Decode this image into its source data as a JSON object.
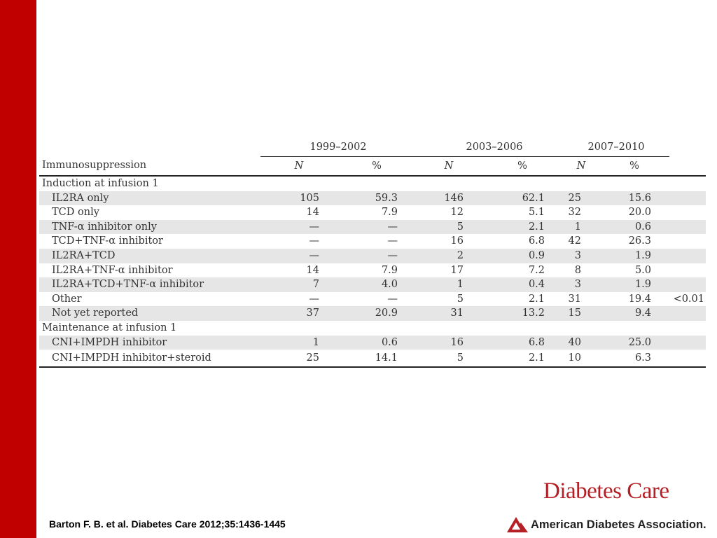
{
  "table": {
    "periods": [
      "1999–2002",
      "2003–2006",
      "2007–2010"
    ],
    "header": {
      "label": "Immunosuppression",
      "n": "N",
      "pct": "%"
    },
    "sections": [
      {
        "title": "Induction at infusion 1",
        "rows": [
          {
            "label": "IL2RA only",
            "v": [
              "105",
              "59.3",
              "146",
              "62.1",
              "25",
              "15.6"
            ],
            "p": ""
          },
          {
            "label": "TCD only",
            "v": [
              "14",
              "7.9",
              "12",
              "5.1",
              "32",
              "20.0"
            ],
            "p": ""
          },
          {
            "label": "TNF-α inhibitor only",
            "v": [
              "—",
              "—",
              "5",
              "2.1",
              "1",
              "0.6"
            ],
            "p": ""
          },
          {
            "label": "TCD+TNF-α inhibitor",
            "v": [
              "—",
              "—",
              "16",
              "6.8",
              "42",
              "26.3"
            ],
            "p": ""
          },
          {
            "label": "IL2RA+TCD",
            "v": [
              "—",
              "—",
              "2",
              "0.9",
              "3",
              "1.9"
            ],
            "p": ""
          },
          {
            "label": "IL2RA+TNF-α inhibitor",
            "v": [
              "14",
              "7.9",
              "17",
              "7.2",
              "8",
              "5.0"
            ],
            "p": ""
          },
          {
            "label": "IL2RA+TCD+TNF-α inhibitor",
            "v": [
              "7",
              "4.0",
              "1",
              "0.4",
              "3",
              "1.9"
            ],
            "p": ""
          },
          {
            "label": "Other",
            "v": [
              "—",
              "—",
              "5",
              "2.1",
              "31",
              "19.4"
            ],
            "p": "<0.01"
          },
          {
            "label": "Not yet reported",
            "v": [
              "37",
              "20.9",
              "31",
              "13.2",
              "15",
              "9.4"
            ],
            "p": ""
          }
        ]
      },
      {
        "title": "Maintenance at infusion 1",
        "rows": [
          {
            "label": "CNI+IMPDH inhibitor",
            "v": [
              "1",
              "0.6",
              "16",
              "6.8",
              "40",
              "25.0"
            ],
            "p": ""
          },
          {
            "label": "CNI+IMPDH inhibitor+steroid",
            "v": [
              "25",
              "14.1",
              "5",
              "2.1",
              "10",
              "6.3"
            ],
            "p": ""
          }
        ]
      }
    ]
  },
  "citation": "Barton F. B. et al. Diabetes Care 2012;35:1436-1445",
  "journal_name": "Diabetes Care",
  "organization": "American Diabetes Association.",
  "colors": {
    "side_bar": "#c00000",
    "journal": "#b42025",
    "row_shade": "#e6e6e6"
  }
}
